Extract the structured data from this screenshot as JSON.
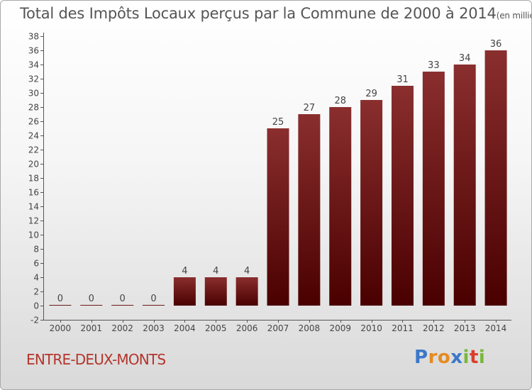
{
  "header": {
    "title": "Total des Impôts Locaux perçus par la Commune de 2000 à 2014",
    "unit": "(en milliers d'€)"
  },
  "footer": {
    "commune": "ENTRE-DEUX-MONTS",
    "logo_letters": [
      "P",
      "r",
      "o",
      "x",
      "i",
      "t",
      "i"
    ]
  },
  "colors": {
    "bar_top": "#8a2e2e",
    "bar_bottom": "#4a0000",
    "title_text": "#555555",
    "commune_text": "#b5342c",
    "logo": [
      "#3a78c9",
      "#e58b1f",
      "#e58b1f",
      "#3a78c9",
      "#79b83a",
      "#d93f2b",
      "#79b83a"
    ]
  },
  "chart_data": {
    "type": "bar",
    "title": "Total des Impôts Locaux perçus par la Commune de 2000 à 2014",
    "unit": "(en milliers d'€)",
    "categories": [
      "2000",
      "2001",
      "2002",
      "2003",
      "2004",
      "2005",
      "2006",
      "2007",
      "2008",
      "2009",
      "2010",
      "2011",
      "2012",
      "2013",
      "2014"
    ],
    "values": [
      0,
      0,
      0,
      0,
      4,
      4,
      4,
      25,
      27,
      28,
      29,
      31,
      33,
      34,
      36
    ],
    "ylim": [
      -2,
      38
    ],
    "yticks": [
      -2,
      0,
      2,
      4,
      6,
      8,
      10,
      12,
      14,
      16,
      18,
      20,
      22,
      24,
      26,
      28,
      30,
      32,
      34,
      36,
      38
    ],
    "grid": false,
    "legend": "none"
  }
}
